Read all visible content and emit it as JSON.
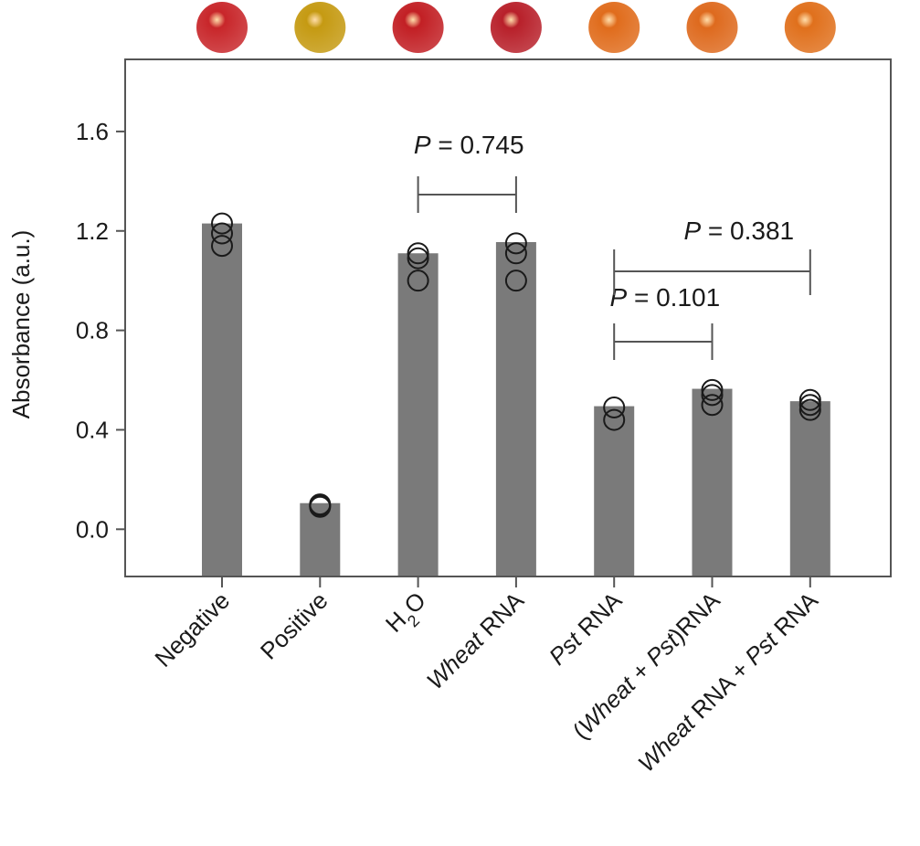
{
  "chart_data": {
    "type": "bar",
    "ylabel": "Absorbance (a.u.)",
    "ylim": [
      -0.19,
      1.89
    ],
    "yticks": [
      "0.0",
      "0.4",
      "0.8",
      "1.2",
      "1.6"
    ],
    "ytick_values": [
      0.0,
      0.4,
      0.8,
      1.2,
      1.6
    ],
    "categories": [
      {
        "parts": [
          {
            "t": "Negative",
            "i": false
          }
        ]
      },
      {
        "parts": [
          {
            "t": "Positive",
            "i": false
          }
        ]
      },
      {
        "parts": [
          {
            "t": "H",
            "i": false
          },
          {
            "t": "2",
            "i": false,
            "sub": true
          },
          {
            "t": "O",
            "i": false
          }
        ]
      },
      {
        "parts": [
          {
            "t": "Wheat",
            "i": true
          },
          {
            "t": " RNA",
            "i": false
          }
        ]
      },
      {
        "parts": [
          {
            "t": "Pst",
            "i": true
          },
          {
            "t": " RNA",
            "i": false
          }
        ]
      },
      {
        "parts": [
          {
            "t": "(",
            "i": false
          },
          {
            "t": "Wheat",
            "i": true
          },
          {
            "t": " + ",
            "i": false
          },
          {
            "t": "Pst",
            "i": true
          },
          {
            "t": ")RNA",
            "i": false
          }
        ]
      },
      {
        "parts": [
          {
            "t": "Wheat",
            "i": true
          },
          {
            "t": " RNA + ",
            "i": false
          },
          {
            "t": "Pst",
            "i": true
          },
          {
            "t": " RNA",
            "i": false
          }
        ]
      }
    ],
    "values": [
      1.23,
      0.105,
      1.11,
      1.155,
      0.495,
      0.565,
      0.515
    ],
    "replicates": [
      [
        1.14,
        1.19,
        1.23
      ],
      [
        0.09,
        0.095,
        0.1
      ],
      [
        1.0,
        1.09,
        1.11
      ],
      [
        1.0,
        1.11,
        1.15
      ],
      [
        0.44,
        0.49
      ],
      [
        0.5,
        0.54,
        0.56
      ],
      [
        0.48,
        0.5,
        0.52
      ]
    ],
    "bead_colors": [
      "#c8262a",
      "#c59a12",
      "#c21f24",
      "#b8202a",
      "#e06c1c",
      "#de6a1e",
      "#e0701c"
    ],
    "bar_color": "#7a7a7a",
    "comparisons": [
      {
        "from": 2,
        "to": 3,
        "p_label": "P",
        "p_value": " = 0.745"
      },
      {
        "from": 4,
        "to": 5,
        "p_label": "P",
        "p_value": " = 0.101"
      },
      {
        "from": 4,
        "to": 6,
        "p_label": "P",
        "p_value": " = 0.381"
      }
    ]
  }
}
